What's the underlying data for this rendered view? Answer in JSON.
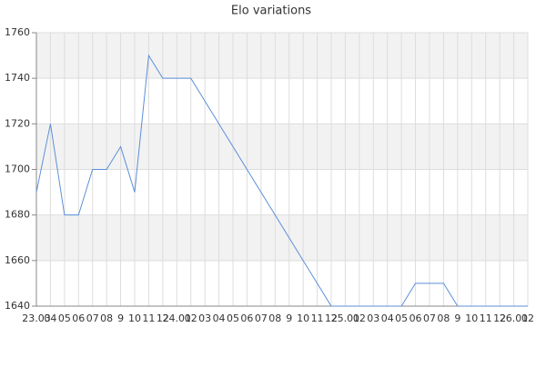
{
  "chart_data": {
    "type": "line",
    "title": "Elo variations",
    "categories": [
      "23.03",
      "04",
      "05",
      "06",
      "07",
      "08",
      "9",
      "10",
      "11",
      "12",
      "24.01",
      "02",
      "03",
      "04",
      "05",
      "06",
      "07",
      "08",
      "9",
      "10",
      "11",
      "12",
      "25.01",
      "02",
      "03",
      "04",
      "05",
      "06",
      "07",
      "08",
      "9",
      "10",
      "11",
      "12",
      "26.01",
      "02"
    ],
    "values": [
      1690,
      1720,
      1680,
      1680,
      1700,
      1700,
      1710,
      1690,
      1750,
      1740,
      1740,
      1740,
      1730,
      1720,
      1710,
      1700,
      1690,
      1680,
      1670,
      1660,
      1650,
      1640,
      1640,
      1640,
      1640,
      1640,
      1640,
      1650,
      1650,
      1650,
      1640,
      1640,
      1640,
      1640,
      1640,
      1640
    ],
    "color": "#5b8fd9",
    "ylim": [
      1640,
      1760
    ],
    "yticks": [
      1640,
      1660,
      1680,
      1700,
      1720,
      1740,
      1760
    ],
    "grid": true
  }
}
